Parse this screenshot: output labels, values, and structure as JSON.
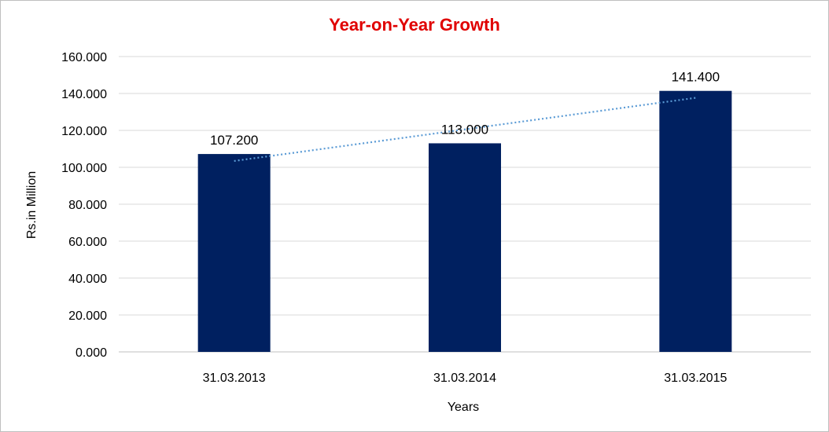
{
  "chart_data": {
    "type": "bar",
    "title": "Year-on-Year Growth",
    "xlabel": "Years",
    "ylabel": "Rs.in Million",
    "categories": [
      "31.03.2013",
      "31.03.2014",
      "31.03.2015"
    ],
    "values": [
      107.2,
      113.0,
      141.4
    ],
    "data_labels": [
      "107.200",
      "113.000",
      "141.400"
    ],
    "ylim": [
      0,
      160
    ],
    "yticks": [
      0,
      20,
      40,
      60,
      80,
      100,
      120,
      140,
      160
    ],
    "ytick_labels": [
      "0.000",
      "20.000",
      "40.000",
      "60.000",
      "80.000",
      "100.000",
      "120.000",
      "140.000",
      "160.000"
    ],
    "trendline": "linear",
    "grid": true,
    "legend": "none",
    "colors": {
      "bar": "#002060",
      "trendline": "#5b9bd5",
      "title": "#e00000",
      "grid": "#d9d9d9"
    }
  }
}
